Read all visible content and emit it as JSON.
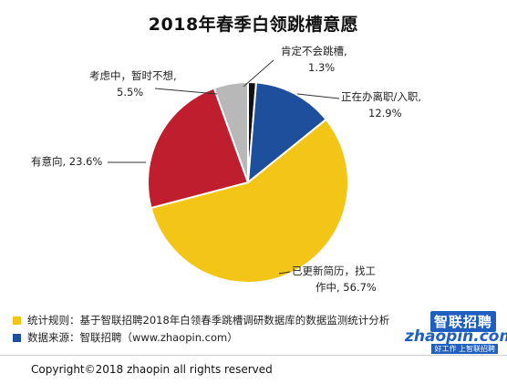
{
  "chart_data": {
    "type": "pie",
    "title": "2018年春季白领跳槽意愿",
    "slices": [
      {
        "name": "肯定不会跳槽",
        "value": 1.3,
        "color": "#111111",
        "label_lines": [
          "肯定不会跳槽,",
          "1.3%"
        ]
      },
      {
        "name": "正在办离职/入职",
        "value": 12.9,
        "color": "#1e4f9c",
        "label_lines": [
          "正在办离职/入职,",
          "12.9%"
        ]
      },
      {
        "name": "已更新简历，找工作中",
        "value": 56.7,
        "color": "#f2c517",
        "label_lines": [
          "已更新简历，找工",
          "作中, 56.7%"
        ]
      },
      {
        "name": "有意向",
        "value": 23.6,
        "color": "#bf1e2e",
        "label_lines": [
          "有意向, 23.6%"
        ]
      },
      {
        "name": "考虑中，暂时不想",
        "value": 5.5,
        "color": "#b8b8b8",
        "label_lines": [
          "考虑中，暂时不想,",
          "5.5%"
        ]
      }
    ]
  },
  "footer": {
    "notes": [
      {
        "color": "#f2c517",
        "text": "统计规则：基于智联招聘2018年白领春季跳槽调研数据库的数据监测统计分析"
      },
      {
        "color": "#1e4f9c",
        "text": "数据来源：智联招聘（www.zhaopin.com）"
      }
    ],
    "copyright": "Copyright©2018 zhaopin all rights reserved"
  },
  "logo": {
    "cn": "智联招聘",
    "en": "zhaopin.com",
    "slogan": "好工作 上智联招聘"
  }
}
